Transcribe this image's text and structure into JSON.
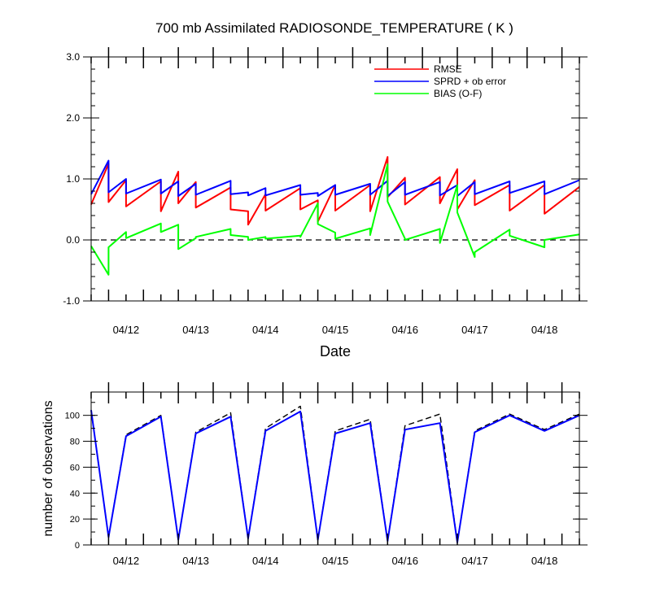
{
  "chart_data": [
    {
      "type": "line",
      "title": "700 mb Assimilated RADIOSONDE_TEMPERATURE ( K )",
      "xlabel": "Date",
      "ylabel": "",
      "x_tick_labels": [
        "04/12",
        "04/13",
        "04/14",
        "04/15",
        "04/16",
        "04/17",
        "04/18"
      ],
      "x_tick_positions": [
        1.0,
        2.0,
        3.0,
        4.0,
        5.0,
        6.0,
        7.0
      ],
      "xlim": [
        0.5,
        7.5
      ],
      "ylim": [
        -1.0,
        3.0
      ],
      "y_ticks": [
        -1.0,
        0.0,
        1.0,
        2.0,
        3.0
      ],
      "y_tick_labels": [
        "-1.0",
        "0.0",
        "1.0",
        "2.0",
        "3.0"
      ],
      "zero_line": "dashed",
      "legend_placement": "top-right",
      "series": [
        {
          "name": "RMSE",
          "color": "#ff0000",
          "x": [
            0.5,
            0.75,
            0.75,
            1.0,
            1.0,
            1.5,
            1.5,
            1.75,
            1.75,
            2.0,
            2.0,
            2.5,
            2.5,
            2.75,
            2.75,
            3.0,
            3.0,
            3.5,
            3.5,
            3.75,
            3.75,
            4.0,
            4.0,
            4.5,
            4.5,
            4.75,
            4.75,
            5.0,
            5.0,
            5.5,
            5.5,
            5.75,
            5.75,
            6.0,
            6.0,
            6.5,
            6.5,
            7.0,
            7.0,
            7.5
          ],
          "y": [
            0.58,
            1.25,
            0.62,
            0.98,
            0.55,
            0.96,
            0.47,
            1.12,
            0.6,
            0.95,
            0.53,
            0.86,
            0.5,
            0.47,
            0.25,
            0.75,
            0.48,
            0.85,
            0.5,
            0.65,
            0.3,
            0.9,
            0.48,
            0.9,
            0.47,
            1.36,
            0.7,
            1.02,
            0.58,
            1.03,
            0.6,
            1.16,
            0.5,
            0.98,
            0.57,
            0.9,
            0.48,
            0.9,
            0.43,
            0.87
          ]
        },
        {
          "name": "SPRD + ob error",
          "color": "#0000ff",
          "x": [
            0.5,
            0.75,
            0.75,
            1.0,
            1.0,
            1.5,
            1.5,
            1.75,
            1.75,
            2.0,
            2.0,
            2.5,
            2.5,
            2.75,
            2.75,
            3.0,
            3.0,
            3.5,
            3.5,
            3.75,
            3.75,
            4.0,
            4.0,
            4.5,
            4.5,
            4.75,
            4.75,
            5.0,
            5.0,
            5.5,
            5.5,
            5.75,
            5.75,
            6.0,
            6.0,
            6.5,
            6.5,
            7.0,
            7.0,
            7.5
          ],
          "y": [
            0.75,
            1.3,
            0.78,
            1.0,
            0.76,
            0.99,
            0.76,
            0.96,
            0.72,
            0.92,
            0.74,
            0.97,
            0.75,
            0.78,
            0.73,
            0.85,
            0.73,
            0.9,
            0.74,
            0.77,
            0.72,
            0.9,
            0.74,
            0.92,
            0.74,
            0.97,
            0.72,
            0.95,
            0.74,
            0.95,
            0.73,
            0.9,
            0.72,
            0.95,
            0.75,
            0.96,
            0.77,
            0.96,
            0.75,
            0.98
          ]
        },
        {
          "name": "BIAS (O-F)",
          "color": "#00ff00",
          "x": [
            0.5,
            0.75,
            0.75,
            1.0,
            1.0,
            1.5,
            1.5,
            1.75,
            1.75,
            2.0,
            2.0,
            2.5,
            2.5,
            2.75,
            2.75,
            3.0,
            3.0,
            3.5,
            3.5,
            3.75,
            3.75,
            4.0,
            4.0,
            4.5,
            4.5,
            4.75,
            4.75,
            5.0,
            5.0,
            5.5,
            5.5,
            5.75,
            5.75,
            6.0,
            6.0,
            6.5,
            6.5,
            7.0,
            7.0,
            7.5
          ],
          "y": [
            -0.1,
            -0.57,
            -0.12,
            0.13,
            0.03,
            0.27,
            0.13,
            0.25,
            -0.15,
            0.03,
            0.05,
            0.18,
            0.08,
            0.05,
            0.0,
            0.05,
            0.02,
            0.07,
            0.05,
            0.6,
            0.26,
            0.12,
            0.02,
            0.19,
            0.08,
            1.24,
            0.63,
            0.02,
            0.0,
            0.18,
            -0.05,
            0.9,
            0.45,
            -0.28,
            -0.2,
            0.17,
            0.07,
            -0.12,
            0.0,
            0.09
          ]
        }
      ]
    },
    {
      "type": "line",
      "title": "",
      "xlabel": "",
      "ylabel": "number of observations",
      "x_tick_labels": [
        "04/12",
        "04/13",
        "04/14",
        "04/15",
        "04/16",
        "04/17",
        "04/18"
      ],
      "x_tick_positions": [
        1.0,
        2.0,
        3.0,
        4.0,
        5.0,
        6.0,
        7.0
      ],
      "xlim": [
        0.5,
        7.5
      ],
      "ylim": [
        0,
        118
      ],
      "y_ticks": [
        0,
        20,
        40,
        60,
        80,
        100
      ],
      "y_tick_labels": [
        "0",
        "20",
        "40",
        "60",
        "80",
        "100"
      ],
      "series": [
        {
          "color": "#000000",
          "style": "dashed",
          "x": [
            0.5,
            0.75,
            1.0,
            1.5,
            1.75,
            2.0,
            2.5,
            2.75,
            3.0,
            3.5,
            3.75,
            4.0,
            4.5,
            4.75,
            5.0,
            5.5,
            5.75,
            6.0,
            6.5,
            7.0,
            7.5
          ],
          "y": [
            104,
            6,
            85,
            100,
            4,
            87,
            102,
            5,
            90,
            107,
            4,
            88,
            97,
            3,
            92,
            101,
            2,
            88,
            101,
            89,
            101
          ]
        },
        {
          "color": "#0000ff",
          "style": "solid",
          "x": [
            0.5,
            0.75,
            1.0,
            1.5,
            1.75,
            2.0,
            2.5,
            2.75,
            3.0,
            3.5,
            3.75,
            4.0,
            4.5,
            4.75,
            5.0,
            5.5,
            5.75,
            6.0,
            6.5,
            7.0,
            7.5
          ],
          "y": [
            104,
            6,
            84,
            99,
            4,
            86,
            99,
            5,
            88,
            103,
            4,
            86,
            94,
            3,
            89,
            94,
            2,
            87,
            100,
            88,
            100
          ]
        }
      ]
    }
  ]
}
